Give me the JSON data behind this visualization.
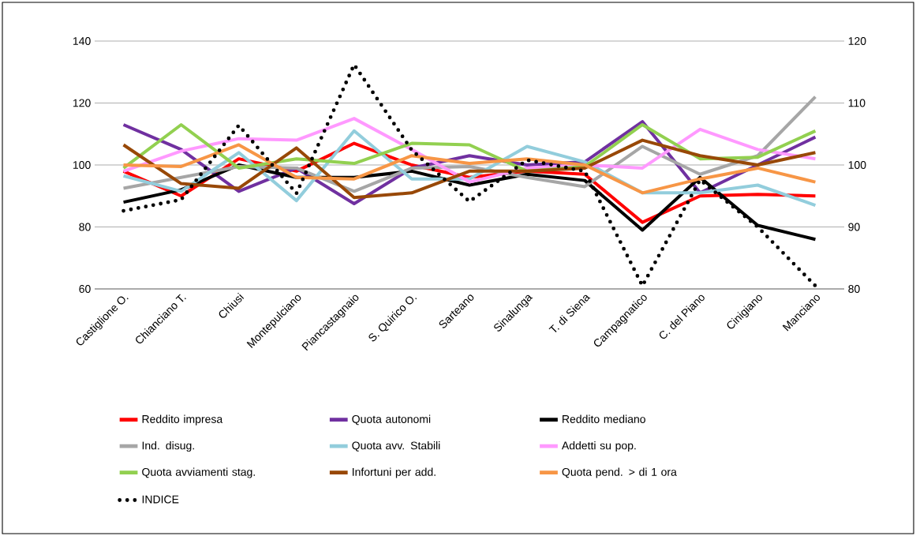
{
  "chart_data": {
    "type": "line",
    "categories": [
      "Castiglione O.",
      "Chianciano T.",
      "Chiusi",
      "Montepulciano",
      "Piancastagnaio",
      "S. Quirico O.",
      "Sarteano",
      "Sinalunga",
      "T. di Siena",
      "Campagnatico",
      "C. del Piano",
      "Cinigiano",
      "Manciano"
    ],
    "series": [
      {
        "name": "Reddito impresa",
        "color": "#ff0000",
        "values": [
          98,
          90,
          102,
          98,
          107,
          100,
          96,
          98,
          97,
          81.5,
          90,
          90.5,
          90
        ]
      },
      {
        "name": "Quota autonomi",
        "color": "#7030a0",
        "values": [
          113,
          105,
          91.5,
          99,
          87.5,
          99,
          103,
          100,
          101,
          114,
          91,
          100,
          109
        ]
      },
      {
        "name": "Reddito mediano",
        "color": "#000000",
        "values": [
          88,
          92,
          100,
          96,
          96,
          98,
          93.5,
          97,
          95,
          79,
          96,
          80.5,
          76
        ]
      },
      {
        "name": "Ind. disug.",
        "color": "#a6a6a6",
        "values": [
          92.5,
          96,
          99.5,
          99,
          91.5,
          99,
          99.5,
          96,
          93,
          106,
          97,
          103,
          122
        ]
      },
      {
        "name": "Quota avv. Stabili",
        "color": "#92cddc",
        "values": [
          96.5,
          91.5,
          104,
          88.5,
          111,
          95.5,
          95.5,
          106,
          101,
          91,
          91,
          93.5,
          87
        ]
      },
      {
        "name": "Addetti su pop.",
        "color": "#ff99ff",
        "values": [
          98,
          104.5,
          108.5,
          108,
          115,
          105,
          94.5,
          99,
          100,
          99,
          111.5,
          105,
          102
        ]
      },
      {
        "name": "Quota avviamenti stag.",
        "color": "#92d050",
        "values": [
          99,
          113,
          99,
          102,
          100.5,
          107,
          106.5,
          98,
          99.5,
          113,
          102,
          102.5,
          111
        ]
      },
      {
        "name": "Infortuni per add.",
        "color": "#984807",
        "values": [
          106.5,
          94,
          92.5,
          105.5,
          89.5,
          91,
          98,
          98,
          99,
          108,
          103,
          100,
          104
        ]
      },
      {
        "name": "Quota pend. > di 1 ora",
        "color": "#f79646",
        "values": [
          100,
          99.5,
          106.5,
          96,
          95.5,
          103,
          100.5,
          102,
          100,
          91,
          95.5,
          99,
          94.5
        ]
      },
      {
        "name": "INDICE",
        "color": "#000000",
        "axis": "y2",
        "line_style": "dotted",
        "values": [
          92.6,
          94.4,
          106.4,
          95.4,
          116.2,
          102.4,
          94.1,
          100.8,
          99,
          80.5,
          97.6,
          90,
          80.5
        ]
      }
    ],
    "ylim": [
      60,
      140
    ],
    "yticks": [
      60,
      80,
      100,
      120,
      140
    ],
    "y2lim": [
      80,
      120
    ],
    "y2ticks": [
      80,
      90,
      100,
      110,
      120
    ],
    "grid": "y",
    "legend": "bottom"
  }
}
